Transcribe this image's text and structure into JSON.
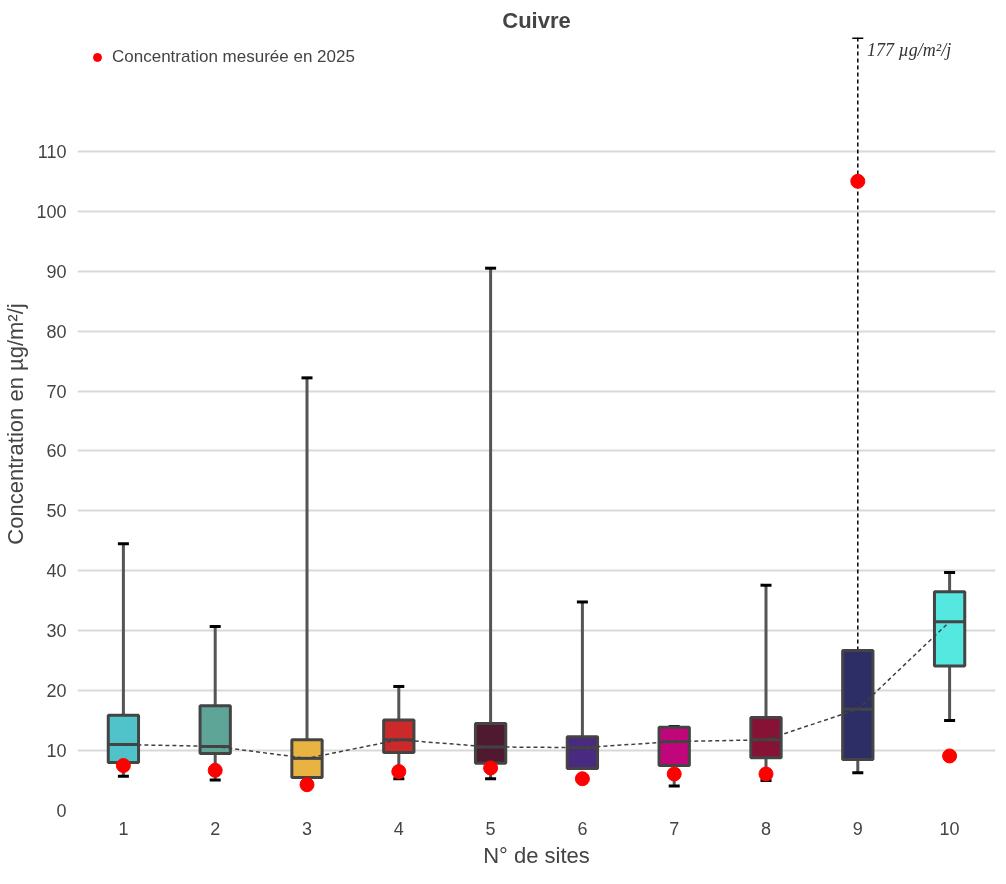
{
  "chart_data": {
    "type": "box",
    "title": "Cuivre",
    "xlabel": "N° de sites",
    "ylabel": "Concentration en µg/m²/j",
    "categories": [
      "1",
      "2",
      "3",
      "4",
      "5",
      "6",
      "7",
      "8",
      "9",
      "10"
    ],
    "ylim": [
      0,
      129
    ],
    "yticks": [
      0,
      10,
      20,
      30,
      40,
      50,
      60,
      70,
      80,
      90,
      100,
      110
    ],
    "grid": "y",
    "legend": "top left",
    "series": [
      {
        "colors": [
          "#4fc3c9",
          "#5ea597",
          "#e8b340",
          "#cc2a2a",
          "#4f1a30",
          "#4a2a80",
          "#c0067a",
          "#861236",
          "#2e2e66",
          "#55e8e0"
        ],
        "boxes": [
          {
            "low": 5.7,
            "q1": 8.0,
            "median": 11.0,
            "q3": 15.9,
            "high": 44.5
          },
          {
            "low": 5.1,
            "q1": 9.5,
            "median": 10.7,
            "q3": 17.5,
            "high": 30.7
          },
          {
            "low": 5.5,
            "q1": 5.5,
            "median": 8.7,
            "q3": 11.8,
            "high": 72.2
          },
          {
            "low": 5.3,
            "q1": 9.7,
            "median": 11.8,
            "q3": 15.1,
            "high": 20.7
          },
          {
            "low": 5.3,
            "q1": 7.9,
            "median": 10.6,
            "q3": 14.5,
            "high": 90.5
          },
          {
            "low": 7.0,
            "q1": 7.0,
            "median": 10.5,
            "q3": 12.3,
            "high": 34.8
          },
          {
            "low": 4.1,
            "q1": 7.5,
            "median": 11.5,
            "q3": 13.9,
            "high": 14.0
          },
          {
            "low": 5.0,
            "q1": 8.8,
            "median": 11.8,
            "q3": 15.5,
            "high": 37.6
          },
          {
            "low": 6.3,
            "q1": 8.5,
            "median": 16.9,
            "q3": 26.7,
            "high": null
          },
          {
            "low": 15.0,
            "q1": 24.1,
            "median": 31.5,
            "q3": 36.5,
            "high": 39.7
          }
        ]
      },
      {
        "type": "line",
        "color": "#404040",
        "line_style": "dashed",
        "values": [
          11.0,
          10.7,
          8.7,
          11.8,
          10.6,
          10.5,
          11.5,
          11.8,
          16.9,
          31.5
        ]
      },
      {
        "type": "scatter",
        "name": "Concentration mesurée en 2025",
        "color": "#ff0000",
        "marker": "circle",
        "values": [
          7.5,
          6.7,
          4.3,
          6.5,
          7.1,
          5.3,
          6.1,
          6.1,
          105,
          9.1
        ]
      }
    ],
    "annotations": [
      "177 µg/m²/j"
    ]
  }
}
